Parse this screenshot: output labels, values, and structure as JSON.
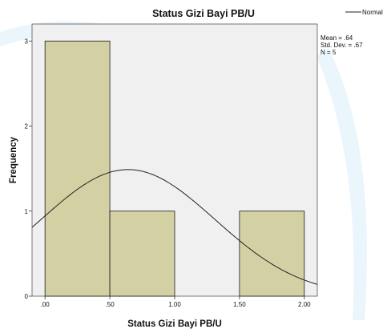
{
  "chart_data": {
    "type": "bar",
    "title": "Status Gizi Bayi PB/U",
    "xlabel": "Status Gizi Bayi PB/U",
    "ylabel": "Frequency",
    "bins": [
      {
        "start": 0.0,
        "end": 0.5,
        "count": 3
      },
      {
        "start": 0.5,
        "end": 1.0,
        "count": 1
      },
      {
        "start": 1.0,
        "end": 1.5,
        "count": 0
      },
      {
        "start": 1.5,
        "end": 2.0,
        "count": 1
      }
    ],
    "xlim": [
      -0.1,
      2.1
    ],
    "ylim": [
      0,
      3.2
    ],
    "x_ticks": [
      0,
      0.5,
      1.0,
      1.5,
      2.0
    ],
    "x_tick_labels": [
      ".00",
      ".50",
      "1.00",
      "1.50",
      "2.00"
    ],
    "y_ticks": [
      0,
      1,
      2,
      3
    ],
    "y_tick_labels": [
      "0",
      "1",
      "2",
      "3"
    ],
    "normal_curve": {
      "mean": 0.64,
      "sd": 0.67,
      "n": 5,
      "bin_width": 0.5
    },
    "legend": {
      "label": "Normal",
      "placement": "top-right"
    },
    "stats": {
      "mean_label": "Mean = .64",
      "std_label": "Std. Dev. = .67",
      "n_label": "N = 5"
    },
    "grid": false,
    "colors": {
      "bar_fill": "#d3d1a4",
      "bar_stroke": "#1a1a1a",
      "plot_bg": "#f0f0f0",
      "curve": "#222222",
      "watermark": "#8ecdf0"
    }
  }
}
